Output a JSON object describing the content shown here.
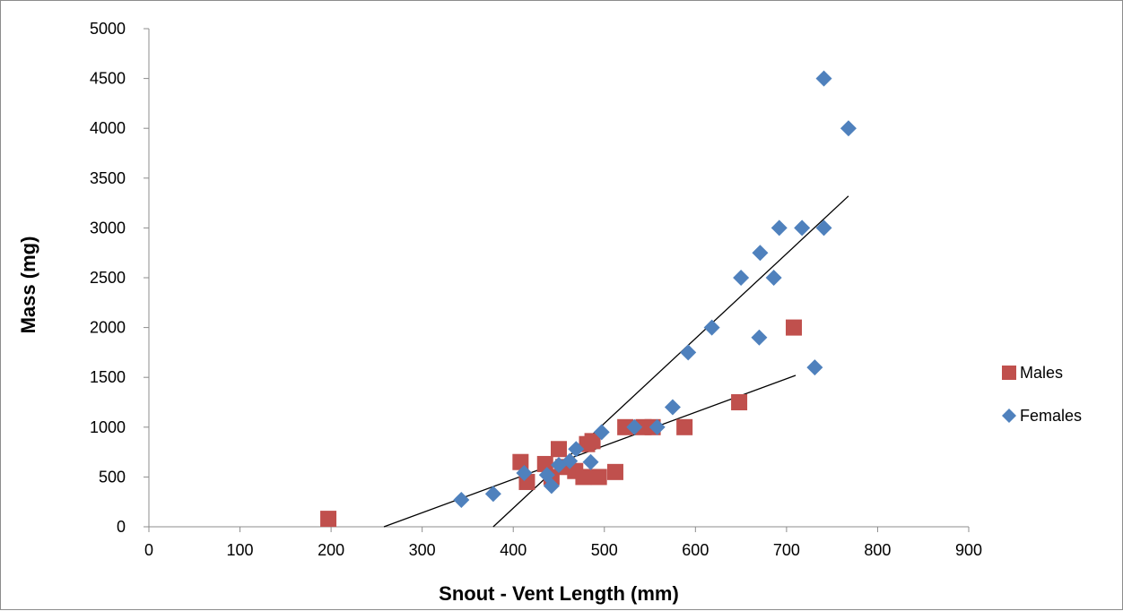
{
  "chart_data": {
    "type": "scatter",
    "xlabel": "Snout - Vent Length (mm)",
    "ylabel": "Mass (mg)",
    "xlim": [
      0,
      900
    ],
    "ylim": [
      0,
      5000
    ],
    "x_ticks": [
      "0",
      "100",
      "200",
      "300",
      "400",
      "500",
      "600",
      "700",
      "800",
      "900"
    ],
    "y_ticks": [
      "0",
      "500",
      "1000",
      "1500",
      "2000",
      "2500",
      "3000",
      "3500",
      "4000",
      "4500",
      "5000"
    ],
    "grid": false,
    "legend_position": "right",
    "series": [
      {
        "name": "Males",
        "marker": "square",
        "color": "#c0504d",
        "points": [
          [
            197,
            80
          ],
          [
            408,
            650
          ],
          [
            415,
            450
          ],
          [
            435,
            630
          ],
          [
            442,
            500
          ],
          [
            450,
            780
          ],
          [
            455,
            600
          ],
          [
            468,
            560
          ],
          [
            477,
            500
          ],
          [
            481,
            830
          ],
          [
            487,
            860
          ],
          [
            494,
            500
          ],
          [
            512,
            550
          ],
          [
            523,
            1000
          ],
          [
            543,
            1000
          ],
          [
            553,
            1000
          ],
          [
            588,
            1000
          ],
          [
            648,
            1250
          ],
          [
            708,
            2000
          ]
        ],
        "trendline": {
          "x": [
            258,
            710
          ],
          "y": [
            0,
            1520
          ]
        }
      },
      {
        "name": "Females",
        "marker": "diamond",
        "color": "#4f81bd",
        "points": [
          [
            343,
            270
          ],
          [
            378,
            330
          ],
          [
            412,
            540
          ],
          [
            437,
            520
          ],
          [
            442,
            410
          ],
          [
            450,
            620
          ],
          [
            462,
            660
          ],
          [
            469,
            780
          ],
          [
            485,
            650
          ],
          [
            497,
            950
          ],
          [
            533,
            1000
          ],
          [
            558,
            1000
          ],
          [
            575,
            1200
          ],
          [
            592,
            1750
          ],
          [
            618,
            2000
          ],
          [
            650,
            2500
          ],
          [
            670,
            1900
          ],
          [
            671,
            2750
          ],
          [
            686,
            2500
          ],
          [
            692,
            3000
          ],
          [
            717,
            3000
          ],
          [
            731,
            1600
          ],
          [
            741,
            3000
          ],
          [
            741,
            4500
          ],
          [
            768,
            4000
          ]
        ],
        "trendline": {
          "x": [
            378,
            768
          ],
          "y": [
            0,
            3320
          ]
        }
      }
    ]
  }
}
